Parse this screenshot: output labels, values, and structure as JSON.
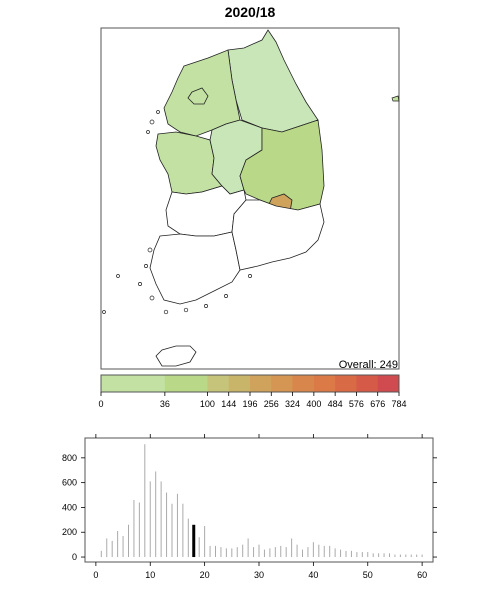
{
  "title": "2020/18",
  "overall_text": "Overall: 249",
  "colors": {
    "scale": [
      "#c2e1a3",
      "#b9d989",
      "#c5c47a",
      "#c8b569",
      "#cfa35c",
      "#d59553",
      "#d8864b",
      "#dc7a47",
      "#d96a46",
      "#d55b48",
      "#cf4b4f",
      "#c83a58",
      "#c12d5e"
    ],
    "no_data": "#ffffff",
    "highlight_bar": "#000000",
    "bars": "#aaaaaa"
  },
  "map": {
    "regions": [
      {
        "name": "Gangwon",
        "fill": "#c8e6b8"
      },
      {
        "name": "Gyeonggi",
        "fill": "#c2e1a3"
      },
      {
        "name": "Seoul",
        "fill": "#c2e1a3"
      },
      {
        "name": "Chungnam",
        "fill": "#c2e1a3"
      },
      {
        "name": "Chungbuk",
        "fill": "#c8e6b8"
      },
      {
        "name": "Gyeongbuk",
        "fill": "#b9d989"
      },
      {
        "name": "Daegu",
        "fill": "#cfa35c"
      },
      {
        "name": "Jeonbuk",
        "fill": "#ffffff"
      },
      {
        "name": "Gwangju",
        "fill": "#c2e1a3"
      },
      {
        "name": "Jeonnam",
        "fill": "#ffffff"
      },
      {
        "name": "Gyeongnam",
        "fill": "#ffffff"
      },
      {
        "name": "Jeju",
        "fill": "#ffffff"
      }
    ]
  },
  "colorbar": {
    "ticks": [
      "0",
      "36",
      "100",
      "144",
      "196",
      "256",
      "324",
      "400",
      "484",
      "576",
      "676",
      "784"
    ]
  },
  "chart_data": {
    "type": "bar",
    "x": [
      1,
      2,
      3,
      4,
      5,
      6,
      7,
      8,
      9,
      10,
      11,
      12,
      13,
      14,
      15,
      16,
      17,
      18,
      19,
      20,
      21,
      22,
      23,
      24,
      25,
      26,
      27,
      28,
      29,
      30,
      31,
      32,
      33,
      34,
      35,
      36,
      37,
      38,
      39,
      40,
      41,
      42,
      43,
      44,
      45,
      46,
      47,
      48,
      49,
      50,
      51,
      52,
      53,
      54,
      55,
      56,
      57,
      58,
      59,
      60
    ],
    "values": [
      50,
      150,
      130,
      210,
      170,
      260,
      460,
      440,
      910,
      610,
      690,
      610,
      520,
      430,
      510,
      430,
      310,
      260,
      160,
      250,
      90,
      90,
      80,
      70,
      70,
      80,
      100,
      150,
      80,
      100,
      60,
      70,
      80,
      90,
      80,
      150,
      100,
      60,
      80,
      120,
      100,
      90,
      90,
      70,
      60,
      50,
      50,
      40,
      40,
      40,
      30,
      30,
      30,
      30,
      20,
      20,
      20,
      20,
      20,
      20
    ],
    "highlight_x": 18,
    "xticks": [
      0,
      10,
      20,
      30,
      40,
      50,
      60
    ],
    "yticks": [
      0,
      200,
      400,
      600,
      800
    ],
    "xlim": [
      -2,
      62
    ],
    "ylim": [
      -40,
      960
    ]
  }
}
